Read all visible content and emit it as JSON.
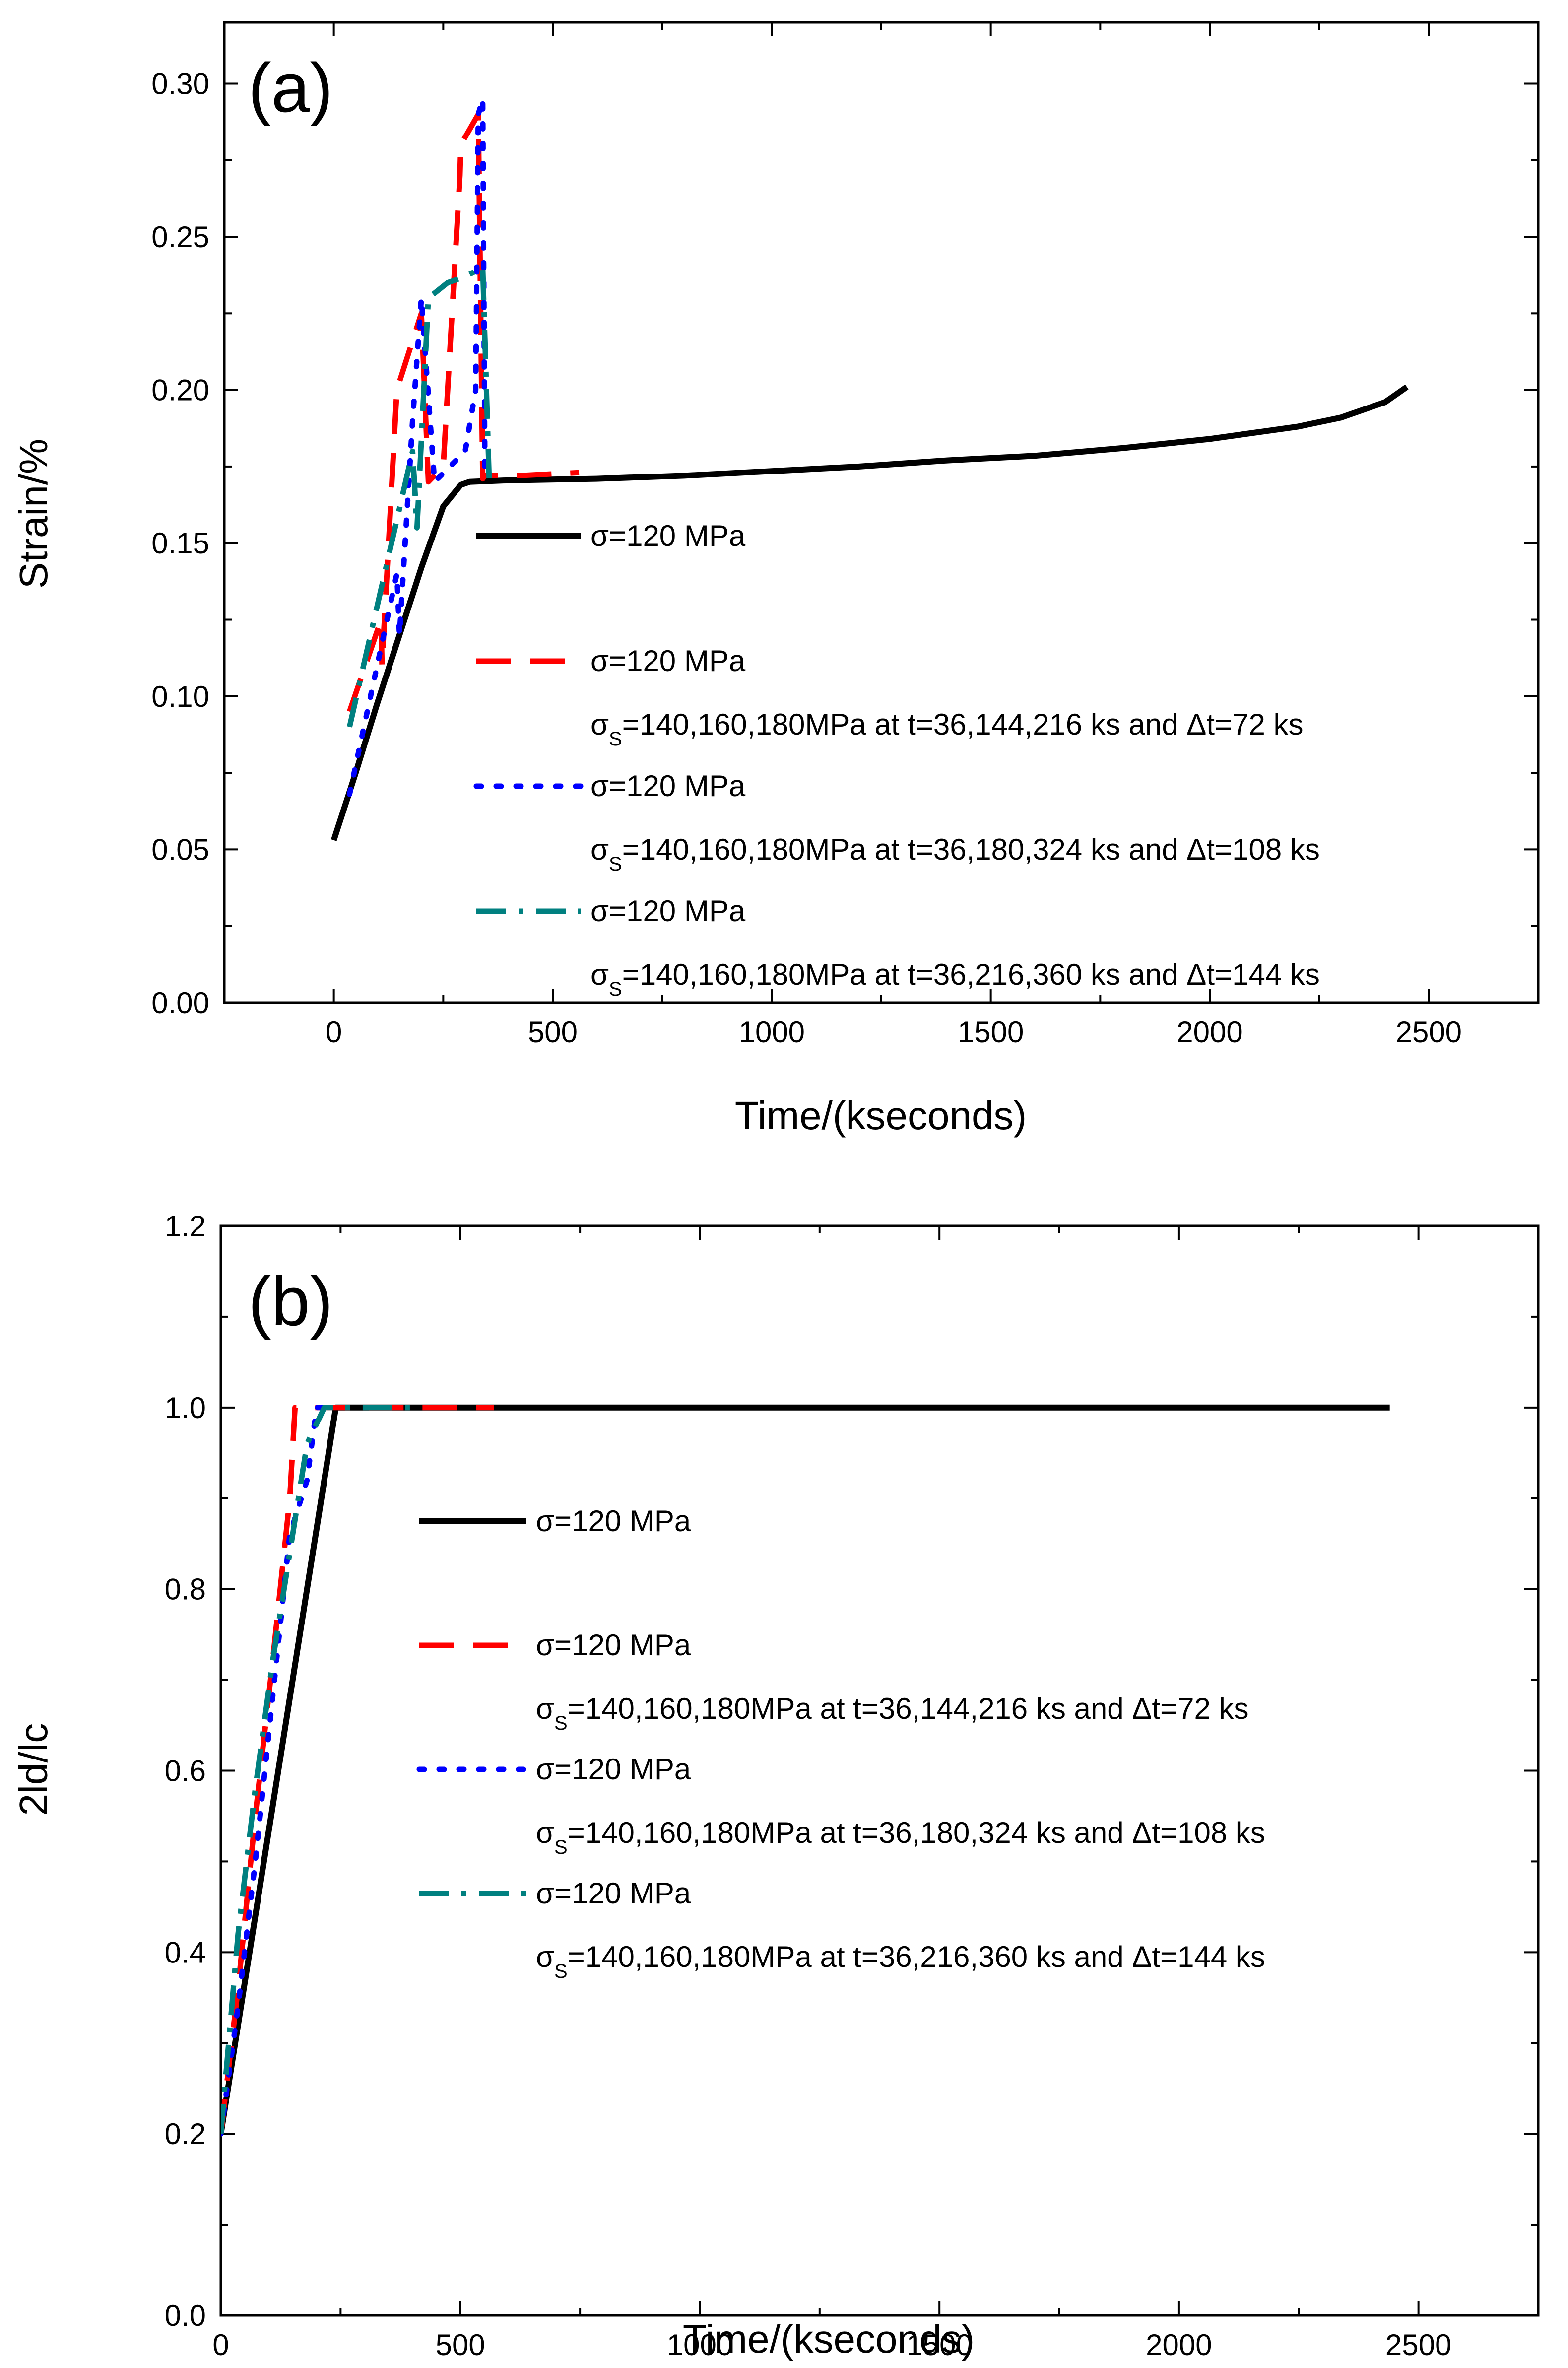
{
  "chart_data": [
    {
      "panel": "a",
      "type": "line",
      "panel_label": "(a)",
      "xlabel": "Time/(kseconds)",
      "ylabel": "Strain/%",
      "xlim": [
        -250,
        2750
      ],
      "ylim": [
        0.0,
        0.32
      ],
      "x_ticks": [
        0,
        500,
        1000,
        1500,
        2000,
        2500
      ],
      "y_ticks": [
        0.0,
        0.05,
        0.1,
        0.15,
        0.2,
        0.25,
        0.3
      ],
      "y_tick_decimals": 2,
      "legend_position": "center-right",
      "series": [
        {
          "name": "σ=120 MPa",
          "subtitle": "",
          "color": "#000000",
          "style": "solid",
          "x": [
            0,
            50,
            100,
            150,
            200,
            250,
            290,
            310,
            400,
            600,
            800,
            1000,
            1200,
            1400,
            1600,
            1800,
            2000,
            2200,
            2300,
            2400,
            2450
          ],
          "y": [
            0.053,
            0.075,
            0.098,
            0.12,
            0.142,
            0.162,
            0.169,
            0.17,
            0.1705,
            0.171,
            0.172,
            0.1735,
            0.175,
            0.177,
            0.1785,
            0.181,
            0.184,
            0.188,
            0.191,
            0.196,
            0.201
          ]
        },
        {
          "name": "σ=120 MPa",
          "subtitle": "σS=140,160,180MPa at t=36,144,216 ks and Δt=72 ks",
          "color": "#ff0000",
          "style": "dashed",
          "x": [
            36,
            108,
            110,
            144,
            200,
            216,
            250,
            288,
            290,
            330,
            340,
            345,
            420,
            560
          ],
          "y": [
            0.095,
            0.125,
            0.11,
            0.2,
            0.225,
            0.17,
            0.175,
            0.27,
            0.28,
            0.29,
            0.171,
            0.172,
            0.172,
            0.173
          ]
        },
        {
          "name": "σ=120 MPa",
          "subtitle": "σS=140,160,180MPa at t=36,180,324 ks and Δt=108 ks",
          "color": "#0000ff",
          "style": "dotted",
          "x": [
            36,
            144,
            150,
            180,
            200,
            230,
            300,
            324,
            330,
            340,
            345
          ],
          "y": [
            0.068,
            0.14,
            0.12,
            0.19,
            0.23,
            0.17,
            0.18,
            0.2,
            0.29,
            0.295,
            0.175
          ]
        },
        {
          "name": "σ=120 MPa",
          "subtitle": "σS=140,160,180MPa at t=36,216,360 ks and Δt=144 ks",
          "color": "#008080",
          "style": "dashdot",
          "x": [
            36,
            180,
            190,
            216,
            260,
            300,
            340,
            355,
            360,
            370
          ],
          "y": [
            0.09,
            0.18,
            0.155,
            0.23,
            0.235,
            0.237,
            0.24,
            0.17,
            0.171,
            0.171
          ]
        }
      ]
    },
    {
      "panel": "b",
      "type": "line",
      "panel_label": "(b)",
      "xlabel": "Time/(kseconds)",
      "ylabel": "2ld/lc",
      "xlim": [
        0,
        2750
      ],
      "ylim": [
        0.0,
        1.2
      ],
      "x_ticks": [
        0,
        500,
        1000,
        1500,
        2000,
        2500
      ],
      "y_ticks": [
        0.0,
        0.2,
        0.4,
        0.6,
        0.8,
        1.0,
        1.2
      ],
      "y_tick_decimals": 1,
      "legend_position": "center-right",
      "series": [
        {
          "name": "σ=120 MPa",
          "subtitle": "",
          "color": "#000000",
          "style": "solid",
          "x": [
            0,
            240,
            2440
          ],
          "y": [
            0.2,
            1.0,
            1.0
          ]
        },
        {
          "name": "σ=120 MPa",
          "subtitle": "σS=140,160,180MPa at t=36,144,216 ks and Δt=72 ks",
          "color": "#ff0000",
          "style": "dashed",
          "x": [
            0,
            36,
            72,
            108,
            144,
            155,
            200,
            570
          ],
          "y": [
            0.2,
            0.36,
            0.55,
            0.72,
            0.9,
            1.0,
            1.0,
            1.0
          ]
        },
        {
          "name": "σ=120 MPa",
          "subtitle": "σS=140,160,180MPa at t=36,180,324 ks and Δt=108 ks",
          "color": "#0000ff",
          "style": "dotted",
          "x": [
            0,
            36,
            72,
            108,
            144,
            180,
            200,
            230
          ],
          "y": [
            0.2,
            0.34,
            0.5,
            0.68,
            0.86,
            0.92,
            1.0,
            1.0
          ]
        },
        {
          "name": "σ=120 MPa",
          "subtitle": "σS=140,160,180MPa at t=36,216,360 ks and Δt=144 ks",
          "color": "#008080",
          "style": "dashdot",
          "x": [
            0,
            36,
            72,
            108,
            144,
            180,
            216,
            400
          ],
          "y": [
            0.2,
            0.42,
            0.58,
            0.72,
            0.84,
            0.96,
            1.0,
            1.0
          ]
        }
      ]
    }
  ]
}
